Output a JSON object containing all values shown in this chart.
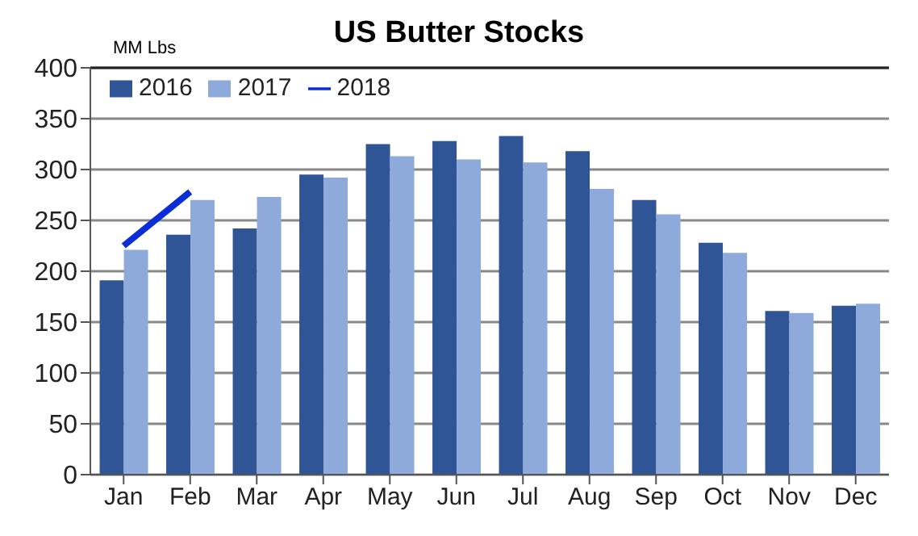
{
  "chart_data": {
    "type": "bar",
    "title": "US Butter Stocks",
    "ylabel": "MM Lbs",
    "categories": [
      "Jan",
      "Feb",
      "Mar",
      "Apr",
      "May",
      "Jun",
      "Jul",
      "Aug",
      "Sep",
      "Oct",
      "Nov",
      "Dec"
    ],
    "series": [
      {
        "name": "2016",
        "color": "#2f5597",
        "values": [
          191,
          236,
          242,
          295,
          325,
          328,
          333,
          318,
          270,
          228,
          161,
          166
        ]
      },
      {
        "name": "2017",
        "color": "#8eaadb",
        "values": [
          221,
          270,
          273,
          292,
          313,
          310,
          307,
          281,
          256,
          218,
          159,
          168
        ]
      },
      {
        "name": "2018",
        "type": "line",
        "color": "#0a2ed6",
        "values": [
          225,
          278,
          null,
          null,
          null,
          null,
          null,
          null,
          null,
          null,
          null,
          null
        ]
      }
    ],
    "ylim": [
      0,
      400
    ],
    "yticks": [
      0,
      50,
      100,
      150,
      200,
      250,
      300,
      350,
      400
    ],
    "grid": "y",
    "legend": "top left",
    "marker": "none"
  }
}
